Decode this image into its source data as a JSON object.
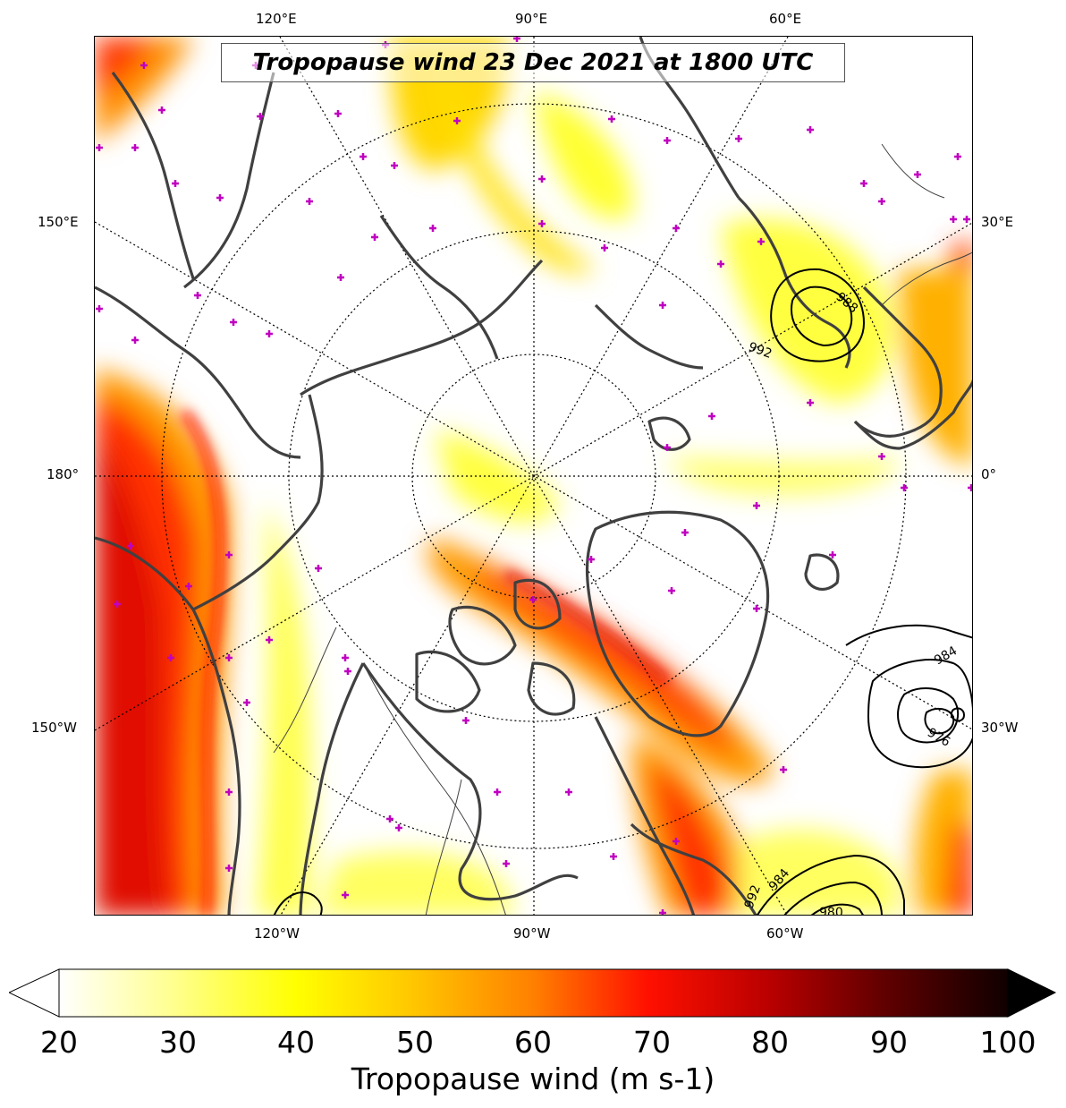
{
  "title": "Tropopause wind 23 Dec 2021 at 1800 UTC",
  "lon_labels": {
    "top": [
      "120°E",
      "90°E",
      "60°E"
    ],
    "bottom": [
      "120°W",
      "90°W",
      "60°W"
    ],
    "left": [
      "150°E",
      "180°",
      "150°W"
    ],
    "right": [
      "30°E",
      "0°",
      "30°W"
    ]
  },
  "contour_labels": [
    "988",
    "992",
    "984",
    "976",
    "992",
    "984",
    "980"
  ],
  "colorbar": {
    "label": "Tropopause wind (m s-1)",
    "ticks": [
      "20",
      "30",
      "40",
      "50",
      "60",
      "70",
      "80",
      "90",
      "100"
    ],
    "min": 20,
    "max": 100,
    "extend": "both",
    "colormap": [
      "#ffffff",
      "#ffff80",
      "#ffff00",
      "#ffd000",
      "#ff9000",
      "#ff5000",
      "#ff0000",
      "#b00000",
      "#500000",
      "#000000"
    ]
  },
  "colors": {
    "coastline": "#404040",
    "marker": "#c000c0",
    "contour": "#000000"
  }
}
